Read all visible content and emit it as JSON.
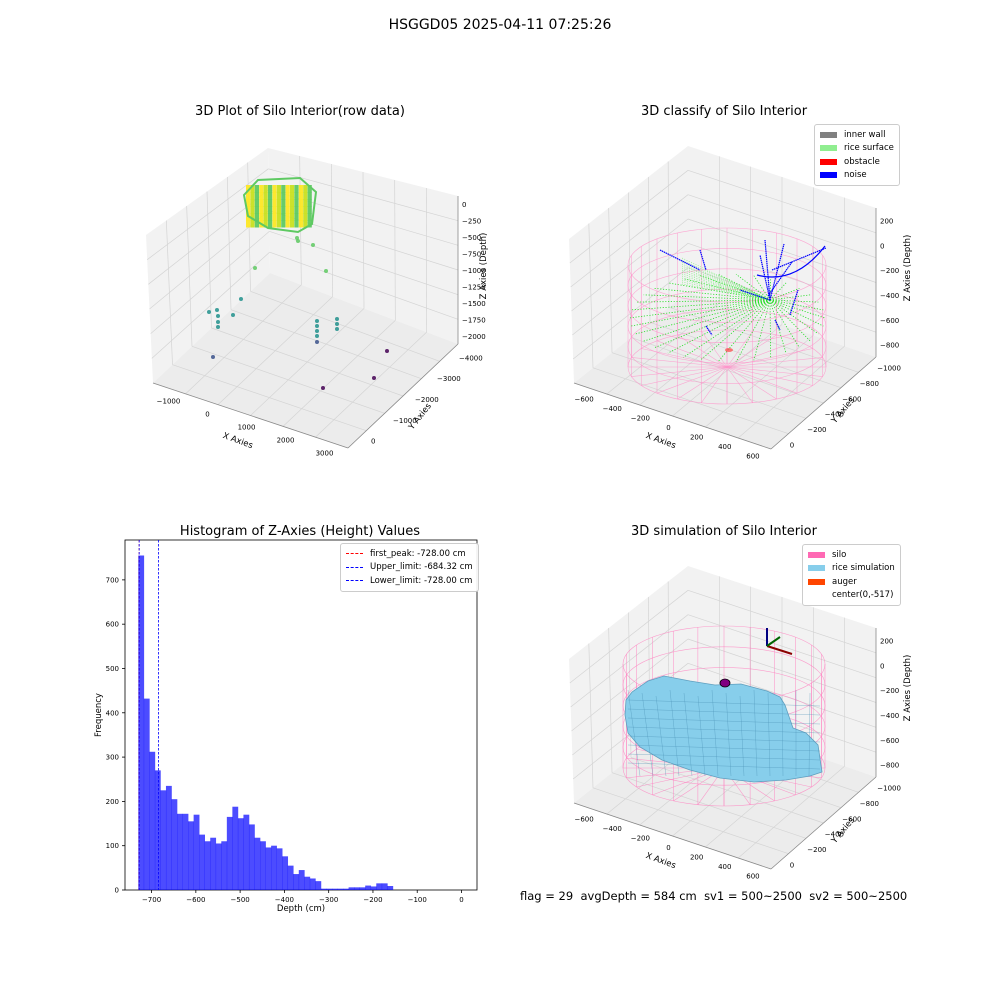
{
  "figure": {
    "suptitle": "HSGGD05 2025-04-11 07:25:26",
    "footer": {
      "flag": "flag = 29",
      "avg": "avgDepth = 584 cm",
      "sv1": "sv1 = 500~2500",
      "sv2": "sv2 = 500~2500"
    }
  },
  "chart_data": [
    {
      "type": "scatter",
      "title": "3D Plot of Silo Interior(row data)",
      "xlabel": "X Axies",
      "ylabel": "Y Axies",
      "zlabel": "Z Axies (Depth)",
      "x_ticks": [
        "−1000",
        "0",
        "1000",
        "2000",
        "3000"
      ],
      "y_ticks": [
        "0",
        "−1000",
        "−2000",
        "−3000",
        "−4000"
      ],
      "z_ticks": [
        "0",
        "−250",
        "−500",
        "−750",
        "−1000",
        "−1250",
        "−1500",
        "−1750",
        "−2000"
      ],
      "colormap": [
        "#440154",
        "#3b528b",
        "#21918c",
        "#5ec962",
        "#fde725"
      ]
    },
    {
      "type": "scatter",
      "title": "3D classify of Silo Interior",
      "xlabel": "X Axies",
      "ylabel": "Y Axies",
      "zlabel": "Z Axies (Depth)",
      "x_ticks": [
        "−600",
        "−400",
        "−200",
        "0",
        "200",
        "400",
        "600"
      ],
      "y_ticks": [
        "0",
        "−200",
        "−400",
        "−600",
        "−800",
        "−1000"
      ],
      "z_ticks": [
        "200",
        "0",
        "−200",
        "−400",
        "−600",
        "−800"
      ],
      "legend": [
        {
          "label": "inner wall",
          "color": "#808080"
        },
        {
          "label": "rice surface",
          "color": "#90ee90"
        },
        {
          "label": "obstacle",
          "color": "#ff0000"
        },
        {
          "label": "noise",
          "color": "#0000ff"
        }
      ]
    },
    {
      "type": "bar",
      "title": "Histogram of Z-Axies (Height) Values",
      "xlabel": "Depth (cm)",
      "ylabel": "Frequency",
      "xlim": [
        -760,
        35
      ],
      "ylim": [
        0,
        790
      ],
      "bin_start": -730,
      "bin_width": 12.5,
      "values": [
        755,
        432,
        312,
        270,
        225,
        235,
        205,
        172,
        172,
        155,
        170,
        125,
        110,
        118,
        105,
        110,
        165,
        188,
        162,
        170,
        148,
        118,
        110,
        96,
        100,
        94,
        76,
        55,
        36,
        45,
        30,
        26,
        20,
        3,
        3,
        3,
        3,
        3,
        6,
        6,
        6,
        10,
        8,
        15,
        15,
        9
      ],
      "color": "#0000ff",
      "x_ticks": [
        -700,
        -600,
        -500,
        -400,
        -300,
        -200,
        -100,
        0
      ],
      "x_tick_labels": [
        "−700",
        "−600",
        "−500",
        "−400",
        "−300",
        "−200",
        "−100",
        "0"
      ],
      "y_ticks": [
        0,
        100,
        200,
        300,
        400,
        500,
        600,
        700
      ],
      "vlines": [
        {
          "x": -728.0,
          "color": "#ff0000"
        },
        {
          "x": -684.32,
          "color": "#0000ff"
        },
        {
          "x": -728.0,
          "color": "#0000ff"
        }
      ],
      "legend": [
        {
          "label": "first_peak: -728.00 cm",
          "color": "#ff0000"
        },
        {
          "label": "Upper_limit: -684.32 cm",
          "color": "#0000ff"
        },
        {
          "label": "Lower_limit: -728.00 cm",
          "color": "#0000ff"
        }
      ]
    },
    {
      "type": "scatter",
      "title": "3D simulation of Silo Interior",
      "xlabel": "X Axies",
      "ylabel": "Y Axies",
      "zlabel": "Z Axies (Depth)",
      "x_ticks": [
        "−600",
        "−400",
        "−200",
        "0",
        "200",
        "400",
        "600"
      ],
      "y_ticks": [
        "0",
        "−200",
        "−400",
        "−600",
        "−800",
        "−1000"
      ],
      "z_ticks": [
        "200",
        "0",
        "−200",
        "−400",
        "−600",
        "−800"
      ],
      "legend": [
        {
          "label": "silo",
          "color": "#ff69b4"
        },
        {
          "label": "rice simulation",
          "color": "#87ceeb"
        },
        {
          "label": "auger",
          "color": "#ff4500"
        },
        {
          "label": "center(0,-517)",
          "color": ""
        }
      ]
    }
  ]
}
